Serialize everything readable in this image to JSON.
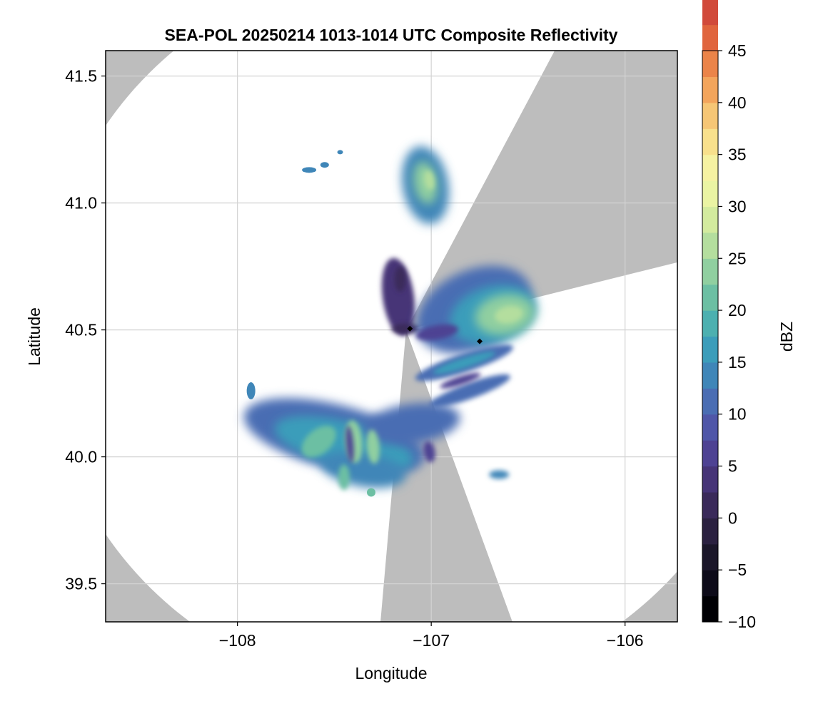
{
  "chart_data": {
    "type": "heatmap",
    "title": "SEA-POL 20250214 1013-1014 UTC Composite Reflectivity",
    "xlabel": "Longitude",
    "ylabel": "Latitude",
    "xlim": [
      -108.68,
      -105.73
    ],
    "ylim": [
      39.35,
      41.6
    ],
    "x_ticks": [
      -108,
      -107,
      -106
    ],
    "x_tick_labels": [
      "−108",
      "−107",
      "−106"
    ],
    "y_ticks": [
      39.5,
      40.0,
      40.5,
      41.0,
      41.5
    ],
    "y_tick_labels": [
      "39.5",
      "40.0",
      "40.5",
      "41.0",
      "41.5"
    ],
    "grid": true,
    "colorbar": {
      "label": "dBZ",
      "range": [
        -10,
        45
      ],
      "ticks": [
        -10,
        -5,
        0,
        5,
        10,
        15,
        20,
        25,
        30,
        35,
        40,
        45
      ],
      "tick_labels": [
        "−10",
        "−5",
        "0",
        "5",
        "10",
        "15",
        "20",
        "25",
        "30",
        "35",
        "40",
        "45"
      ],
      "step": 2.5,
      "colors": [
        "#000004",
        "#0d0b19",
        "#1b1729",
        "#2b2140",
        "#3a2a5a",
        "#463477",
        "#4e4293",
        "#4f56a8",
        "#4a6db3",
        "#3f86b8",
        "#3b9dba",
        "#4cb0b0",
        "#6cbfa3",
        "#90cfa0",
        "#b4de9e",
        "#d3eb9e",
        "#eaf4a3",
        "#f6f2a2",
        "#f8e08c",
        "#f6c675",
        "#f3a55c",
        "#eb8449",
        "#e0653e",
        "#d14a3b",
        "#bd2d41",
        "#a5154a",
        "#b8205d",
        "#cd3377",
        "#dc5192",
        "#e773ab",
        "#ed98c3",
        "#e4aed6",
        "#c8a2cf",
        "#ad89bd",
        "#9270ab",
        "#7b5697",
        "#673f84",
        "#552b72",
        "#441a60",
        "#33094d"
      ]
    },
    "radar": {
      "center": [
        -107.13,
        40.5
      ],
      "radius_lat_deg": 1.43,
      "blocked_sectors_deg": [
        [
          14,
          62
        ],
        [
          -95,
          -70
        ]
      ]
    },
    "markers": [
      {
        "lon": -107.11,
        "lat": 40.505
      },
      {
        "lon": -106.75,
        "lat": 40.455
      }
    ],
    "echo_regions": [
      {
        "region": "north cell",
        "lon": -107.03,
        "lat": 41.08,
        "peak_dbz": 26
      },
      {
        "region": "northeast cell",
        "lon": -106.62,
        "lat": 40.56,
        "peak_dbz": 26
      },
      {
        "region": "near radar",
        "lon": -107.12,
        "lat": 40.62,
        "peak_dbz": 2
      },
      {
        "region": "southwest band",
        "lon": -107.35,
        "lat": 40.02,
        "peak_dbz": 25
      },
      {
        "region": "southeast band",
        "lon": -106.85,
        "lat": 40.3,
        "peak_dbz": 16
      }
    ],
    "colors": {
      "no_data": "#bdbdbd",
      "in_range_background": "#ffffff",
      "grid": "#d3d3d3"
    }
  }
}
